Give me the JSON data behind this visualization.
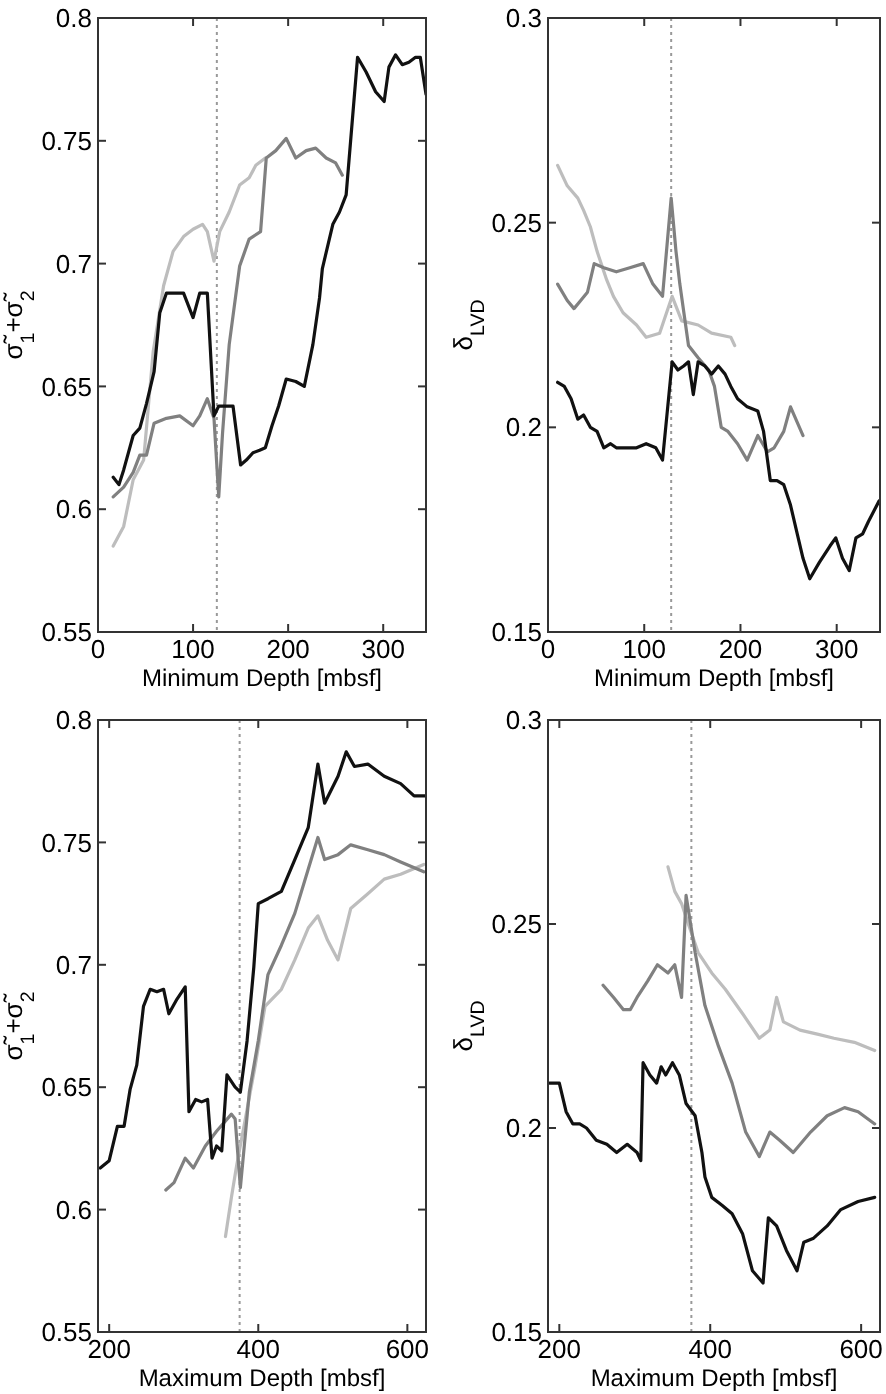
{
  "chart_data": [
    {
      "type": "line",
      "xlabel": "Minimum Depth [mbsf]",
      "ylabel": "σ̃$_{1}$+σ̃$_{2}$",
      "xlim": [
        0,
        345
      ],
      "ylim": [
        0.55,
        0.8
      ],
      "xticks": [
        0,
        100,
        200,
        300
      ],
      "yticks": [
        0.55,
        0.6,
        0.65,
        0.7,
        0.75,
        0.8
      ],
      "ref_lines": [
        {
          "axis": "x",
          "value": 125,
          "color": "#999999",
          "line_style": "dotted"
        }
      ],
      "series": [
        {
          "color": "#bdbdbd",
          "x": [
            16,
            27,
            37,
            48,
            58,
            69,
            79,
            90,
            100,
            110,
            115,
            122,
            128,
            138,
            149,
            159,
            166,
            176
          ],
          "values": [
            0.585,
            0.593,
            0.612,
            0.62,
            0.664,
            0.691,
            0.705,
            0.711,
            0.714,
            0.716,
            0.713,
            0.701,
            0.713,
            0.721,
            0.732,
            0.735,
            0.74,
            0.743
          ]
        },
        {
          "color": "#808080",
          "x": [
            16,
            27,
            37,
            44,
            51,
            59,
            72,
            86,
            100,
            107,
            115,
            122,
            127,
            131,
            138,
            149,
            159,
            171,
            177,
            187,
            198,
            208,
            219,
            229,
            240,
            250,
            257
          ],
          "values": [
            0.605,
            0.609,
            0.615,
            0.622,
            0.622,
            0.635,
            0.637,
            0.638,
            0.634,
            0.638,
            0.645,
            0.637,
            0.605,
            0.631,
            0.667,
            0.699,
            0.71,
            0.713,
            0.743,
            0.746,
            0.751,
            0.743,
            0.746,
            0.747,
            0.743,
            0.741,
            0.736
          ]
        },
        {
          "color": "#111111",
          "x": [
            16,
            22,
            27,
            37,
            44,
            51,
            59,
            65,
            72,
            83,
            90,
            100,
            107,
            115,
            122,
            127,
            134,
            142,
            150,
            156,
            163,
            170,
            176,
            183,
            190,
            198,
            208,
            217,
            226,
            233,
            236,
            247,
            254,
            261,
            273,
            282,
            292,
            301,
            306,
            313,
            320,
            327,
            334,
            339,
            345
          ],
          "values": [
            0.613,
            0.61,
            0.616,
            0.63,
            0.633,
            0.643,
            0.656,
            0.68,
            0.688,
            0.688,
            0.688,
            0.678,
            0.688,
            0.688,
            0.638,
            0.642,
            0.642,
            0.642,
            0.618,
            0.62,
            0.623,
            0.624,
            0.625,
            0.634,
            0.642,
            0.653,
            0.652,
            0.65,
            0.667,
            0.686,
            0.698,
            0.716,
            0.721,
            0.728,
            0.784,
            0.778,
            0.77,
            0.766,
            0.78,
            0.785,
            0.781,
            0.782,
            0.784,
            0.784,
            0.769
          ]
        }
      ]
    },
    {
      "type": "line",
      "xlabel": "Minimum Depth [mbsf]",
      "ylabel": "δ$_{LVD}$",
      "xlim": [
        0,
        345
      ],
      "ylim": [
        0.15,
        0.3
      ],
      "xticks": [
        0,
        100,
        200,
        300
      ],
      "yticks": [
        0.15,
        0.2,
        0.25,
        0.3
      ],
      "ref_lines": [
        {
          "axis": "x",
          "value": 128,
          "color": "#999999",
          "line_style": "dotted"
        }
      ],
      "series": [
        {
          "color": "#bdbdbd",
          "x": [
            10,
            20,
            31,
            37,
            44,
            51,
            61,
            68,
            78,
            92,
            102,
            116,
            129,
            139,
            156,
            170,
            190,
            194
          ],
          "values": [
            0.264,
            0.259,
            0.256,
            0.253,
            0.249,
            0.243,
            0.236,
            0.232,
            0.228,
            0.225,
            0.222,
            0.223,
            0.232,
            0.226,
            0.225,
            0.223,
            0.222,
            0.22
          ]
        },
        {
          "color": "#808080",
          "x": [
            10,
            20,
            27,
            34,
            41,
            48,
            58,
            71,
            85,
            99,
            109,
            119,
            128,
            133,
            137,
            146,
            156,
            167,
            173,
            180,
            187,
            197,
            207,
            218,
            228,
            235,
            245,
            252,
            265
          ],
          "values": [
            0.235,
            0.231,
            0.229,
            0.231,
            0.233,
            0.24,
            0.239,
            0.238,
            0.239,
            0.24,
            0.235,
            0.232,
            0.256,
            0.243,
            0.235,
            0.22,
            0.217,
            0.214,
            0.21,
            0.2,
            0.199,
            0.196,
            0.192,
            0.198,
            0.194,
            0.195,
            0.199,
            0.205,
            0.198
          ]
        },
        {
          "color": "#111111",
          "x": [
            10,
            17,
            24,
            31,
            37,
            44,
            51,
            58,
            65,
            71,
            82,
            92,
            102,
            112,
            119,
            129,
            135,
            141,
            146,
            151,
            156,
            163,
            170,
            177,
            184,
            190,
            197,
            207,
            218,
            224,
            231,
            238,
            245,
            252,
            259,
            265,
            272,
            282,
            293,
            299,
            306,
            313,
            320,
            327,
            333,
            344
          ],
          "values": [
            0.211,
            0.21,
            0.207,
            0.202,
            0.203,
            0.2,
            0.199,
            0.195,
            0.196,
            0.195,
            0.195,
            0.195,
            0.196,
            0.195,
            0.192,
            0.216,
            0.214,
            0.215,
            0.216,
            0.208,
            0.216,
            0.215,
            0.213,
            0.215,
            0.213,
            0.21,
            0.207,
            0.205,
            0.204,
            0.199,
            0.187,
            0.187,
            0.186,
            0.181,
            0.174,
            0.168,
            0.163,
            0.167,
            0.171,
            0.173,
            0.168,
            0.165,
            0.173,
            0.174,
            0.177,
            0.182
          ]
        }
      ]
    },
    {
      "type": "line",
      "xlabel": "Maximum Depth [mbsf]",
      "ylabel": "σ̃$_{1}$+σ̃$_{2}$",
      "xlim": [
        185,
        625
      ],
      "ylim": [
        0.55,
        0.8
      ],
      "xticks": [
        200,
        400,
        600
      ],
      "yticks": [
        0.55,
        0.6,
        0.65,
        0.7,
        0.75,
        0.8
      ],
      "ref_lines": [
        {
          "axis": "x",
          "value": 375,
          "color": "#999999",
          "line_style": "dotted"
        }
      ],
      "series": [
        {
          "color": "#bdbdbd",
          "x": [
            356,
            364,
            371,
            396,
            409,
            431,
            449,
            467,
            480,
            493,
            507,
            524,
            547,
            569,
            591,
            622
          ],
          "values": [
            0.589,
            0.605,
            0.618,
            0.659,
            0.683,
            0.69,
            0.702,
            0.715,
            0.72,
            0.71,
            0.702,
            0.723,
            0.729,
            0.735,
            0.737,
            0.741
          ]
        },
        {
          "color": "#808080",
          "x": [
            276,
            287,
            302,
            313,
            329,
            344,
            364,
            369,
            376,
            388,
            400,
            413,
            431,
            449,
            467,
            480,
            489,
            507,
            524,
            547,
            569,
            591,
            622
          ],
          "values": [
            0.608,
            0.611,
            0.621,
            0.617,
            0.626,
            0.632,
            0.639,
            0.637,
            0.609,
            0.648,
            0.669,
            0.696,
            0.708,
            0.721,
            0.739,
            0.752,
            0.743,
            0.745,
            0.749,
            0.747,
            0.745,
            0.742,
            0.738
          ]
        },
        {
          "color": "#111111",
          "x": [
            188,
            200,
            211,
            220,
            228,
            237,
            246,
            255,
            264,
            273,
            280,
            291,
            302,
            307,
            316,
            324,
            332,
            338,
            344,
            351,
            358,
            369,
            376,
            385,
            394,
            400,
            413,
            431,
            449,
            467,
            480,
            489,
            507,
            518,
            529,
            547,
            569,
            591,
            609,
            625
          ],
          "values": [
            0.617,
            0.62,
            0.634,
            0.634,
            0.649,
            0.659,
            0.683,
            0.69,
            0.689,
            0.69,
            0.68,
            0.686,
            0.691,
            0.64,
            0.645,
            0.644,
            0.645,
            0.621,
            0.626,
            0.624,
            0.655,
            0.65,
            0.648,
            0.669,
            0.699,
            0.725,
            0.727,
            0.73,
            0.743,
            0.756,
            0.782,
            0.766,
            0.777,
            0.787,
            0.781,
            0.782,
            0.777,
            0.774,
            0.769,
            0.769
          ]
        }
      ]
    },
    {
      "type": "line",
      "xlabel": "Maximum Depth [mbsf]",
      "ylabel": "δ$_{LVD}$",
      "xlim": [
        185,
        625
      ],
      "ylim": [
        0.15,
        0.3
      ],
      "xticks": [
        200,
        400,
        600
      ],
      "yticks": [
        0.15,
        0.2,
        0.25,
        0.3
      ],
      "ref_lines": [
        {
          "axis": "x",
          "value": 375,
          "color": "#999999",
          "line_style": "dotted"
        }
      ],
      "series": [
        {
          "color": "#bdbdbd",
          "x": [
            344,
            353,
            362,
            371,
            384,
            402,
            420,
            443,
            465,
            479,
            488,
            497,
            519,
            542,
            564,
            591,
            618
          ],
          "values": [
            0.264,
            0.258,
            0.255,
            0.25,
            0.243,
            0.238,
            0.234,
            0.228,
            0.222,
            0.224,
            0.232,
            0.226,
            0.224,
            0.223,
            0.222,
            0.221,
            0.219
          ]
        },
        {
          "color": "#808080",
          "x": [
            258,
            272,
            285,
            294,
            303,
            317,
            330,
            344,
            353,
            362,
            368,
            380,
            393,
            411,
            429,
            447,
            465,
            479,
            492,
            510,
            533,
            555,
            578,
            596,
            618
          ],
          "values": [
            0.235,
            0.232,
            0.229,
            0.229,
            0.232,
            0.236,
            0.24,
            0.238,
            0.24,
            0.232,
            0.257,
            0.243,
            0.23,
            0.22,
            0.211,
            0.199,
            0.193,
            0.199,
            0.197,
            0.194,
            0.199,
            0.203,
            0.205,
            0.204,
            0.201
          ]
        },
        {
          "color": "#111111",
          "x": [
            187,
            200,
            209,
            218,
            227,
            236,
            249,
            263,
            276,
            290,
            303,
            308,
            311,
            320,
            329,
            335,
            341,
            350,
            359,
            368,
            380,
            389,
            393,
            402,
            416,
            429,
            443,
            456,
            470,
            477,
            488,
            501,
            515,
            524,
            537,
            555,
            573,
            596,
            618
          ],
          "values": [
            0.211,
            0.211,
            0.204,
            0.201,
            0.201,
            0.2,
            0.197,
            0.196,
            0.194,
            0.196,
            0.194,
            0.192,
            0.216,
            0.213,
            0.211,
            0.215,
            0.213,
            0.216,
            0.213,
            0.206,
            0.203,
            0.194,
            0.188,
            0.183,
            0.181,
            0.179,
            0.174,
            0.165,
            0.162,
            0.178,
            0.176,
            0.17,
            0.165,
            0.172,
            0.173,
            0.176,
            0.18,
            0.182,
            0.183
          ]
        }
      ]
    }
  ]
}
